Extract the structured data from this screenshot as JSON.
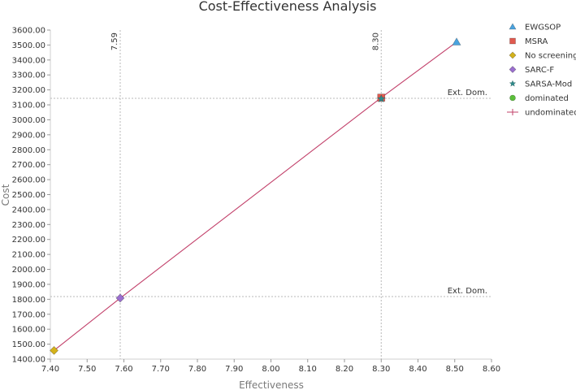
{
  "chart_data": {
    "type": "scatter",
    "title": "Cost-Effectiveness Analysis",
    "xlabel": "Effectiveness",
    "ylabel": "Cost",
    "xlim": [
      7.4,
      8.6
    ],
    "ylim": [
      1400,
      3600
    ],
    "x_ticks": [
      "7.40",
      "7.50",
      "7.60",
      "7.70",
      "7.80",
      "7.90",
      "8.00",
      "8.10",
      "8.20",
      "8.30",
      "8.40",
      "8.50",
      "8.60"
    ],
    "y_ticks": [
      "1400.00",
      "1500.00",
      "1600.00",
      "1700.00",
      "1800.00",
      "1900.00",
      "2000.00",
      "2100.00",
      "2200.00",
      "2300.00",
      "2400.00",
      "2500.00",
      "2600.00",
      "2700.00",
      "2800.00",
      "2900.00",
      "3000.00",
      "3100.00",
      "3200.00",
      "3300.00",
      "3400.00",
      "3500.00",
      "3600.00"
    ],
    "grid": false,
    "legend_position": "right",
    "series": [
      {
        "name": "EWGSOP",
        "marker": "triangle",
        "color": "#4aa3df",
        "points": [
          [
            8.505,
            3520
          ]
        ]
      },
      {
        "name": "MSRA",
        "marker": "square",
        "color": "#e05a4f",
        "points": [
          [
            8.3,
            3148
          ]
        ]
      },
      {
        "name": "No screening",
        "marker": "diamond",
        "color": "#d4b21a",
        "points": [
          [
            7.41,
            1458
          ]
        ]
      },
      {
        "name": "SARC-F",
        "marker": "diamond",
        "color": "#9b6fd0",
        "points": [
          [
            7.59,
            1808
          ]
        ]
      },
      {
        "name": "SARSA-Mod",
        "marker": "star",
        "color": "#2f8a8a",
        "points": [
          [
            8.3,
            3140
          ]
        ]
      },
      {
        "name": "dominated",
        "marker": "circle",
        "color": "#5bbf3a",
        "points": []
      },
      {
        "name": "undominated",
        "marker": "line",
        "color": "#c2406a",
        "points": [
          [
            7.41,
            1458
          ],
          [
            7.59,
            1808
          ],
          [
            8.3,
            3148
          ],
          [
            8.505,
            3520
          ]
        ]
      }
    ],
    "reference_lines": {
      "vertical": [
        {
          "x": 7.59,
          "label": "7.59"
        },
        {
          "x": 8.3,
          "label": "8.30"
        }
      ],
      "horizontal": [
        {
          "y": 3140,
          "label": "Ext. Dom."
        },
        {
          "y": 1808,
          "label": "Ext. Dom."
        }
      ]
    }
  }
}
